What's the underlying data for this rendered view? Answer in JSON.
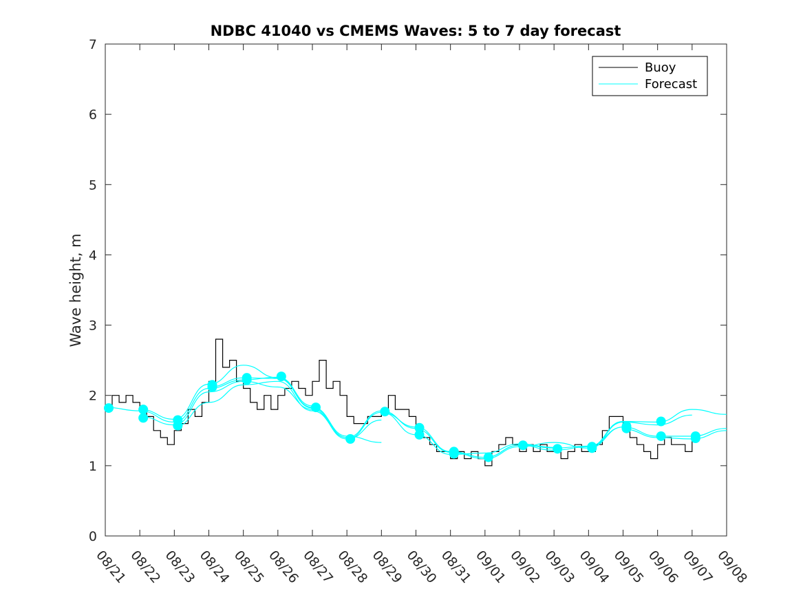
{
  "chart_data": {
    "type": "line",
    "title": "NDBC 41040 vs CMEMS Waves: 5 to 7 day forecast",
    "xlabel": "",
    "ylabel": "Wave height, m",
    "ylim": [
      0,
      7
    ],
    "yticks": [
      "0",
      "1",
      "2",
      "3",
      "4",
      "5",
      "6",
      "7"
    ],
    "xlim": [
      "08/21",
      "09/08"
    ],
    "xticks": [
      "08/21",
      "08/22",
      "08/23",
      "08/24",
      "08/25",
      "08/26",
      "08/27",
      "08/28",
      "08/29",
      "08/30",
      "08/31",
      "09/01",
      "09/02",
      "09/03",
      "09/04",
      "09/05",
      "09/06",
      "09/07",
      "09/08"
    ],
    "grid": false,
    "legend": {
      "location": "top-right",
      "entries": [
        "Buoy",
        "Forecast"
      ]
    },
    "series": [
      {
        "name": "Buoy",
        "color": "#000000",
        "points": [
          [
            "08/21",
            1.8
          ],
          [
            "08/21",
            2.0
          ],
          [
            "08/21",
            1.9
          ],
          [
            "08/21",
            2.0
          ],
          [
            "08/21",
            1.9
          ],
          [
            "08/22",
            1.8
          ],
          [
            "08/22",
            1.7
          ],
          [
            "08/22",
            1.5
          ],
          [
            "08/22",
            1.4
          ],
          [
            "08/22",
            1.3
          ],
          [
            "08/23",
            1.5
          ],
          [
            "08/23",
            1.6
          ],
          [
            "08/23",
            1.8
          ],
          [
            "08/23",
            1.7
          ],
          [
            "08/23",
            1.9
          ],
          [
            "08/24",
            2.2
          ],
          [
            "08/24",
            2.8
          ],
          [
            "08/24",
            2.4
          ],
          [
            "08/24",
            2.5
          ],
          [
            "08/24",
            2.2
          ],
          [
            "08/25",
            2.1
          ],
          [
            "08/25",
            1.9
          ],
          [
            "08/25",
            1.8
          ],
          [
            "08/25",
            2.0
          ],
          [
            "08/25",
            1.8
          ],
          [
            "08/26",
            2.0
          ],
          [
            "08/26",
            2.1
          ],
          [
            "08/26",
            2.2
          ],
          [
            "08/26",
            2.1
          ],
          [
            "08/26",
            2.0
          ],
          [
            "08/27",
            2.2
          ],
          [
            "08/27",
            2.5
          ],
          [
            "08/27",
            2.1
          ],
          [
            "08/27",
            2.2
          ],
          [
            "08/27",
            2.0
          ],
          [
            "08/28",
            1.7
          ],
          [
            "08/28",
            1.6
          ],
          [
            "08/28",
            1.6
          ],
          [
            "08/28",
            1.7
          ],
          [
            "08/28",
            1.7
          ],
          [
            "08/29",
            1.8
          ],
          [
            "08/29",
            2.0
          ],
          [
            "08/29",
            1.8
          ],
          [
            "08/29",
            1.8
          ],
          [
            "08/29",
            1.7
          ],
          [
            "08/30",
            1.5
          ],
          [
            "08/30",
            1.4
          ],
          [
            "08/30",
            1.3
          ],
          [
            "08/30",
            1.2
          ],
          [
            "08/30",
            1.2
          ],
          [
            "08/31",
            1.1
          ],
          [
            "08/31",
            1.2
          ],
          [
            "08/31",
            1.1
          ],
          [
            "08/31",
            1.2
          ],
          [
            "08/31",
            1.1
          ],
          [
            "09/01",
            1.0
          ],
          [
            "09/01",
            1.2
          ],
          [
            "09/01",
            1.3
          ],
          [
            "09/01",
            1.4
          ],
          [
            "09/01",
            1.3
          ],
          [
            "09/02",
            1.2
          ],
          [
            "09/02",
            1.3
          ],
          [
            "09/02",
            1.2
          ],
          [
            "09/02",
            1.3
          ],
          [
            "09/02",
            1.2
          ],
          [
            "09/03",
            1.2
          ],
          [
            "09/03",
            1.1
          ],
          [
            "09/03",
            1.2
          ],
          [
            "09/03",
            1.3
          ],
          [
            "09/03",
            1.2
          ],
          [
            "09/04",
            1.2
          ],
          [
            "09/04",
            1.3
          ],
          [
            "09/04",
            1.5
          ],
          [
            "09/04",
            1.7
          ],
          [
            "09/04",
            1.7
          ],
          [
            "09/05",
            1.6
          ],
          [
            "09/05",
            1.4
          ],
          [
            "09/05",
            1.3
          ],
          [
            "09/05",
            1.2
          ],
          [
            "09/05",
            1.1
          ],
          [
            "09/06",
            1.3
          ],
          [
            "09/06",
            1.4
          ],
          [
            "09/06",
            1.3
          ],
          [
            "09/06",
            1.3
          ],
          [
            "09/06",
            1.2
          ],
          [
            "09/07",
            1.4
          ]
        ]
      },
      {
        "name": "Forecast",
        "color": "#00ffff",
        "lines": [
          [
            [
              "08/21",
              1.83
            ],
            [
              "08/22",
              1.78
            ],
            [
              "08/23",
              1.62
            ],
            [
              "08/24",
              2.1
            ],
            [
              "08/25",
              2.22
            ],
            [
              "08/26",
              2.26
            ],
            [
              "08/27",
              1.85
            ]
          ],
          [
            [
              "08/22",
              1.8
            ],
            [
              "08/23",
              1.66
            ],
            [
              "08/24",
              2.16
            ],
            [
              "08/25",
              2.43
            ],
            [
              "08/26",
              2.25
            ],
            [
              "08/27",
              1.82
            ],
            [
              "08/28",
              1.4
            ]
          ],
          [
            [
              "08/22",
              1.7
            ],
            [
              "08/23",
              1.58
            ],
            [
              "08/24",
              2.05
            ],
            [
              "08/25",
              2.2
            ],
            [
              "08/26",
              2.12
            ],
            [
              "08/27",
              1.8
            ],
            [
              "08/28",
              1.38
            ],
            [
              "08/29",
              1.65
            ]
          ],
          [
            [
              "08/23",
              1.55
            ],
            [
              "08/24",
              1.9
            ],
            [
              "08/25",
              2.15
            ],
            [
              "08/26",
              2.2
            ],
            [
              "08/27",
              1.78
            ],
            [
              "08/28",
              1.4
            ],
            [
              "08/29",
              1.78
            ],
            [
              "08/30",
              1.53
            ]
          ],
          [
            [
              "08/24",
              2.12
            ],
            [
              "08/25",
              2.25
            ],
            [
              "08/26",
              2.24
            ],
            [
              "08/27",
              1.83
            ],
            [
              "08/28",
              1.42
            ],
            [
              "08/29",
              1.33
            ]
          ],
          [
            [
              "08/28",
              1.38
            ],
            [
              "08/29",
              1.76
            ],
            [
              "08/30",
              1.55
            ],
            [
              "08/31",
              1.2
            ],
            [
              "09/01",
              1.12
            ],
            [
              "09/02",
              1.29
            ]
          ],
          [
            [
              "08/29",
              1.76
            ],
            [
              "08/30",
              1.44
            ],
            [
              "08/31",
              1.16
            ],
            [
              "09/01",
              1.18
            ],
            [
              "09/02",
              1.31
            ],
            [
              "09/03",
              1.26
            ]
          ],
          [
            [
              "08/30",
              1.52
            ],
            [
              "08/31",
              1.19
            ],
            [
              "09/01",
              1.1
            ],
            [
              "09/02",
              1.27
            ],
            [
              "09/03",
              1.33
            ],
            [
              "09/04",
              1.25
            ],
            [
              "09/05",
              1.55
            ]
          ],
          [
            [
              "09/01",
              1.12
            ],
            [
              "09/02",
              1.29
            ],
            [
              "09/03",
              1.22
            ],
            [
              "09/04",
              1.27
            ],
            [
              "09/05",
              1.63
            ],
            [
              "09/06",
              1.62
            ],
            [
              "09/07",
              1.8
            ],
            [
              "09/08",
              1.73
            ]
          ],
          [
            [
              "09/02",
              1.3
            ],
            [
              "09/03",
              1.25
            ],
            [
              "09/04",
              1.28
            ],
            [
              "09/05",
              1.55
            ],
            [
              "09/06",
              1.42
            ],
            [
              "09/07",
              1.42
            ],
            [
              "09/08",
              1.53
            ]
          ],
          [
            [
              "09/04",
              1.25
            ],
            [
              "09/05",
              1.62
            ],
            [
              "09/06",
              1.58
            ],
            [
              "09/07",
              1.72
            ]
          ],
          [
            [
              "09/05",
              1.52
            ],
            [
              "09/06",
              1.4
            ],
            [
              "09/07",
              1.38
            ],
            [
              "09/08",
              1.5
            ]
          ]
        ],
        "markers": [
          [
            "08/21",
            1.82
          ],
          [
            "08/22",
            1.8
          ],
          [
            "08/22",
            1.68
          ],
          [
            "08/23",
            1.65
          ],
          [
            "08/23",
            1.57
          ],
          [
            "08/24",
            2.15
          ],
          [
            "08/24",
            2.12
          ],
          [
            "08/25",
            2.25
          ],
          [
            "08/25",
            2.22
          ],
          [
            "08/26",
            2.27
          ],
          [
            "08/27",
            1.83
          ],
          [
            "08/28",
            1.38
          ],
          [
            "08/29",
            1.77
          ],
          [
            "08/30",
            1.54
          ],
          [
            "08/30",
            1.44
          ],
          [
            "08/31",
            1.2
          ],
          [
            "08/31",
            1.17
          ],
          [
            "09/01",
            1.12
          ],
          [
            "09/02",
            1.29
          ],
          [
            "09/03",
            1.24
          ],
          [
            "09/04",
            1.27
          ],
          [
            "09/04",
            1.25
          ],
          [
            "09/05",
            1.56
          ],
          [
            "09/05",
            1.53
          ],
          [
            "09/06",
            1.63
          ],
          [
            "09/06",
            1.42
          ],
          [
            "09/07",
            1.42
          ],
          [
            "09/07",
            1.39
          ]
        ]
      }
    ]
  }
}
